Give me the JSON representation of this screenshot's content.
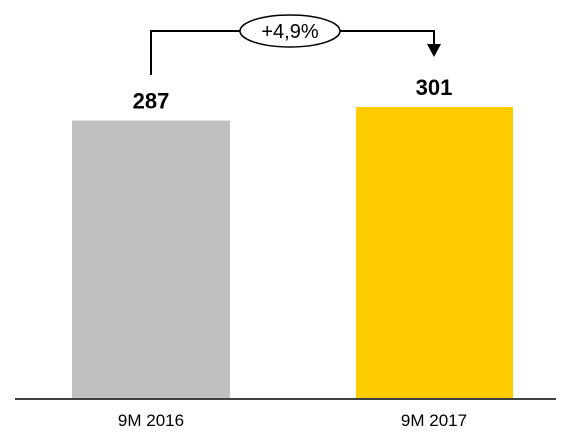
{
  "chart_data": {
    "type": "bar",
    "categories": [
      "9M 2016",
      "9M 2017"
    ],
    "values": [
      287,
      301
    ],
    "value_labels": [
      "287",
      "301"
    ],
    "colors": [
      "#c0c0c0",
      "#ffcc00"
    ],
    "annotation": "+4,9%",
    "ylim": [
      0,
      301
    ]
  }
}
